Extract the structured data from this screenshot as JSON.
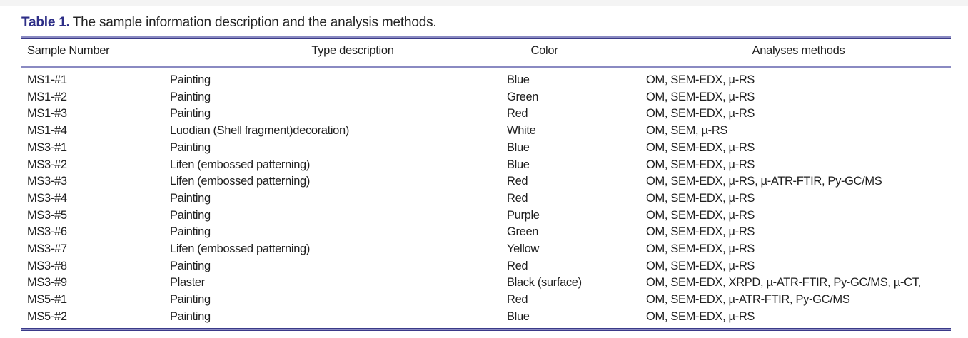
{
  "page": {
    "background": "#ffffff",
    "top_strip_color": "#f4f4f4"
  },
  "title": {
    "label": "Table 1.",
    "text": "The sample information description and the analysis methods.",
    "label_color": "#2d2e87"
  },
  "table": {
    "rule_color": "#3a3a88",
    "columns": [
      "Sample Number",
      "Type description",
      "Color",
      "Analyses methods"
    ],
    "rows": [
      {
        "sample": "MS1-#1",
        "type": "Painting",
        "color": "Blue",
        "methods": "OM, SEM-EDX, µ-RS"
      },
      {
        "sample": "MS1-#2",
        "type": "Painting",
        "color": "Green",
        "methods": "OM, SEM-EDX, µ-RS"
      },
      {
        "sample": "MS1-#3",
        "type": "Painting",
        "color": "Red",
        "methods": "OM, SEM-EDX, µ-RS"
      },
      {
        "sample": "MS1-#4",
        "type": "Luodian (Shell fragment)decoration)",
        "color": "White",
        "methods": "OM, SEM, µ-RS"
      },
      {
        "sample": "MS3-#1",
        "type": "Painting",
        "color": "Blue",
        "methods": "OM, SEM-EDX, µ-RS"
      },
      {
        "sample": "MS3-#2",
        "type": "Lifen (embossed patterning)",
        "color": "Blue",
        "methods": "OM, SEM-EDX, µ-RS"
      },
      {
        "sample": "MS3-#3",
        "type": "Lifen (embossed patterning)",
        "color": "Red",
        "methods": "OM, SEM-EDX, µ-RS, µ-ATR-FTIR, Py-GC/MS"
      },
      {
        "sample": "MS3-#4",
        "type": "Painting",
        "color": "Red",
        "methods": "OM, SEM-EDX, µ-RS"
      },
      {
        "sample": "MS3-#5",
        "type": "Painting",
        "color": "Purple",
        "methods": "OM, SEM-EDX, µ-RS"
      },
      {
        "sample": "MS3-#6",
        "type": "Painting",
        "color": "Green",
        "methods": "OM, SEM-EDX, µ-RS"
      },
      {
        "sample": "MS3-#7",
        "type": "Lifen (embossed patterning)",
        "color": "Yellow",
        "methods": "OM, SEM-EDX, µ-RS"
      },
      {
        "sample": "MS3-#8",
        "type": "Painting",
        "color": "Red",
        "methods": "OM, SEM-EDX, µ-RS"
      },
      {
        "sample": "MS3-#9",
        "type": "Plaster",
        "color": "Black (surface)",
        "methods": "OM, SEM-EDX, XRPD, µ-ATR-FTIR, Py-GC/MS, µ-CT,"
      },
      {
        "sample": "MS5-#1",
        "type": "Painting",
        "color": "Red",
        "methods": "OM, SEM-EDX, µ-ATR-FTIR, Py-GC/MS"
      },
      {
        "sample": "MS5-#2",
        "type": "Painting",
        "color": "Blue",
        "methods": "OM, SEM-EDX, µ-RS"
      }
    ]
  }
}
